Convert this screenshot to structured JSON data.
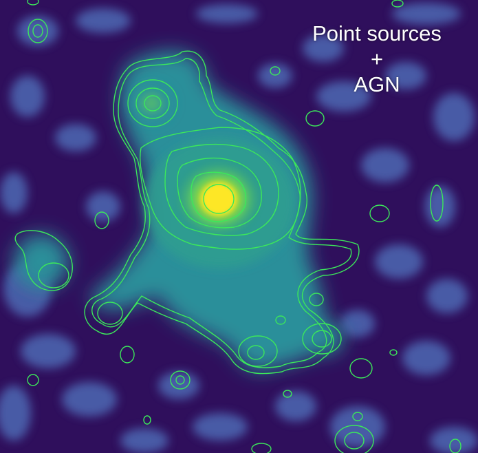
{
  "caption": {
    "line1": "Point sources",
    "line2": "+",
    "line3": "AGN"
  },
  "colors": {
    "background": "#2f0f5c",
    "noise": "#4e69b4",
    "diffuse": "#2a8f9a",
    "core": "#fde725",
    "contour": "#3ce85a",
    "caption": "#ffffff"
  }
}
